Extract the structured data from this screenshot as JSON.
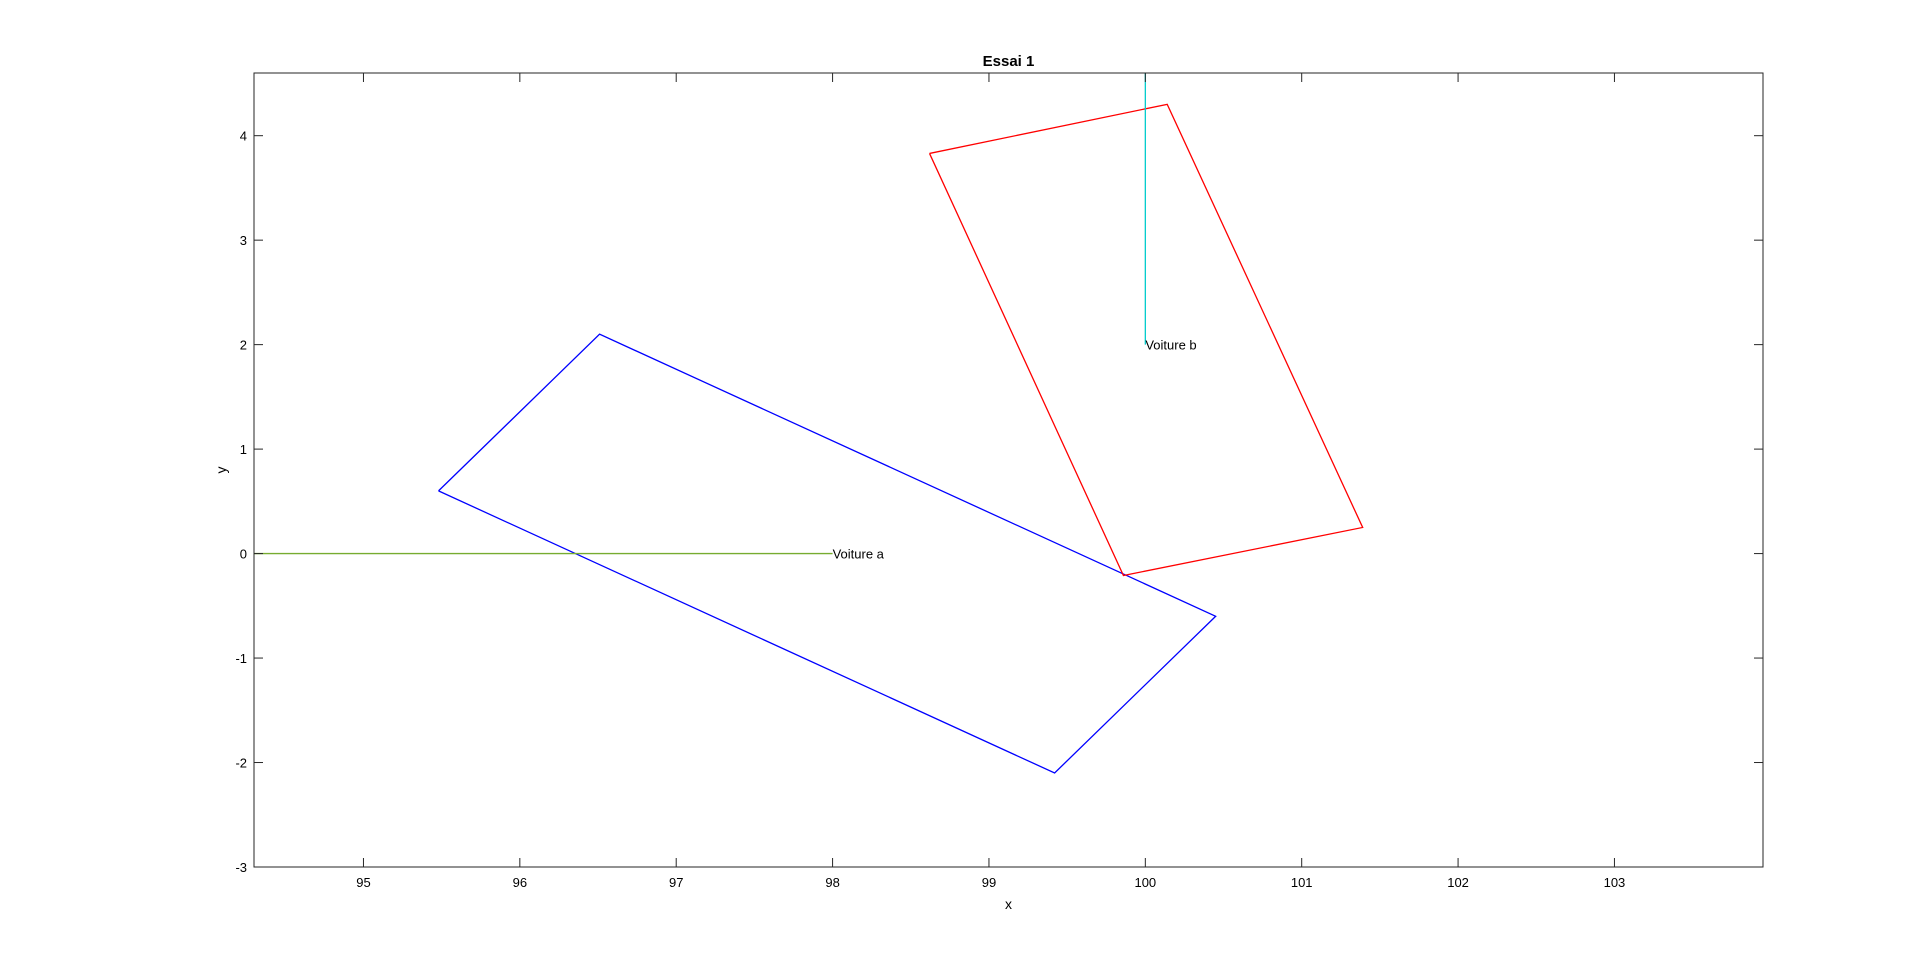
{
  "chart_data": {
    "type": "line",
    "title": "Essai 1",
    "xlabel": "x",
    "ylabel": "y",
    "xlim": [
      94.3,
      103.95
    ],
    "ylim": [
      -3,
      4.6
    ],
    "xticks": [
      95,
      96,
      97,
      98,
      99,
      100,
      101,
      102,
      103
    ],
    "yticks": [
      -3,
      -2,
      -1,
      0,
      1,
      2,
      3,
      4
    ],
    "grid": false,
    "legend": "none",
    "series": [
      {
        "color": "#0000ff",
        "closed": true,
        "x": [
          95.48,
          96.51,
          100.45,
          99.42,
          95.48
        ],
        "y": [
          0.6,
          2.1,
          -0.6,
          -2.1,
          0.6
        ]
      },
      {
        "color": "#ff0000",
        "closed": true,
        "x": [
          98.62,
          100.14,
          101.39,
          99.86,
          98.62
        ],
        "y": [
          3.83,
          4.3,
          0.25,
          -0.21,
          3.83
        ]
      },
      {
        "color": "#77ac30",
        "closed": false,
        "x": [
          94.3,
          98.0
        ],
        "y": [
          0,
          0
        ]
      },
      {
        "color": "#00cccc",
        "closed": false,
        "x": [
          100.0,
          100.0
        ],
        "y": [
          2.0,
          4.6
        ]
      }
    ],
    "annotations": [
      {
        "text": "Voiture a",
        "x": 98.0,
        "y": 0
      },
      {
        "text": "Voiture b",
        "x": 100.0,
        "y": 2.0
      }
    ]
  }
}
